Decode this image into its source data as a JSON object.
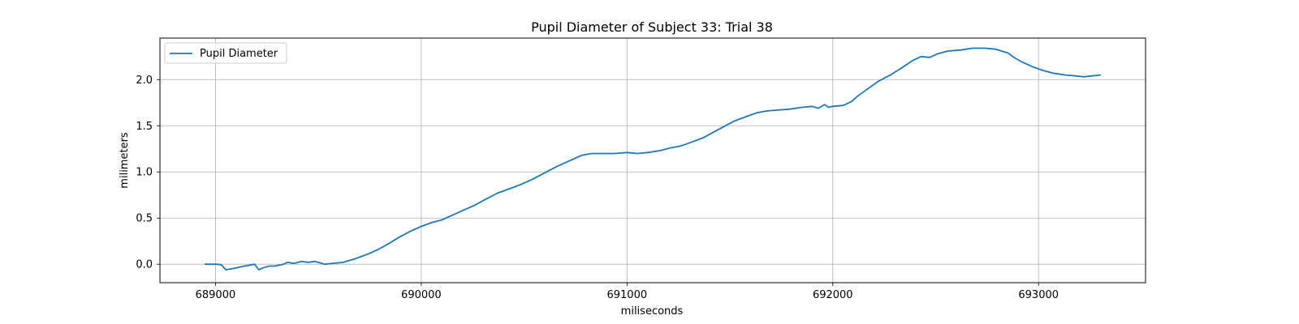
{
  "chart_data": {
    "type": "line",
    "title": "Pupil Diameter of Subject 33: Trial 38",
    "xlabel": "miliseconds",
    "ylabel": "milimeters",
    "xlim": [
      688730,
      693520
    ],
    "ylim": [
      -0.2,
      2.45
    ],
    "xticks": [
      689000,
      690000,
      691000,
      692000,
      693000
    ],
    "yticks": [
      0.0,
      0.5,
      1.0,
      1.5,
      2.0
    ],
    "xtick_labels": [
      "689000",
      "690000",
      "691000",
      "692000",
      "693000"
    ],
    "ytick_labels": [
      "0.0",
      "0.5",
      "1.0",
      "1.5",
      "2.0"
    ],
    "grid": true,
    "legend_position": "top-left",
    "colors": {
      "series": "#1f77b4",
      "grid": "#b0b0b0"
    },
    "series": [
      {
        "name": "Pupil Diameter",
        "x": [
          688950,
          689010,
          689030,
          689050,
          689080,
          689140,
          689170,
          689190,
          689210,
          689230,
          689260,
          689290,
          689330,
          689350,
          689380,
          689420,
          689450,
          689480,
          689500,
          689530,
          689570,
          689620,
          689680,
          689740,
          689790,
          689840,
          689890,
          689950,
          690000,
          690050,
          690100,
          690150,
          690200,
          690260,
          690310,
          690370,
          690420,
          690480,
          690540,
          690600,
          690660,
          690720,
          690780,
          690830,
          690880,
          690940,
          691000,
          691050,
          691100,
          691160,
          691210,
          691260,
          691310,
          691370,
          691420,
          691470,
          691520,
          691580,
          691630,
          691680,
          691730,
          691790,
          691850,
          691900,
          691930,
          691960,
          691980,
          692000,
          692050,
          692090,
          692120,
          692170,
          692220,
          692280,
          692330,
          692390,
          692430,
          692470,
          692510,
          692560,
          692620,
          692680,
          692740,
          692790,
          692850,
          692880,
          692920,
          692970,
          693020,
          693070,
          693130,
          693180,
          693220,
          693260,
          693300
        ],
        "y": [
          0.0,
          0.0,
          -0.01,
          -0.06,
          -0.05,
          -0.02,
          -0.01,
          0.0,
          -0.06,
          -0.04,
          -0.02,
          -0.02,
          0.0,
          0.02,
          0.01,
          0.03,
          0.02,
          0.03,
          0.02,
          0.0,
          0.01,
          0.02,
          0.06,
          0.11,
          0.16,
          0.22,
          0.29,
          0.36,
          0.41,
          0.45,
          0.48,
          0.53,
          0.58,
          0.64,
          0.7,
          0.77,
          0.81,
          0.86,
          0.92,
          0.99,
          1.06,
          1.12,
          1.18,
          1.2,
          1.2,
          1.2,
          1.21,
          1.2,
          1.21,
          1.23,
          1.26,
          1.28,
          1.32,
          1.37,
          1.43,
          1.49,
          1.55,
          1.6,
          1.64,
          1.66,
          1.67,
          1.68,
          1.7,
          1.71,
          1.69,
          1.73,
          1.7,
          1.71,
          1.72,
          1.76,
          1.82,
          1.9,
          1.98,
          2.05,
          2.12,
          2.21,
          2.25,
          2.24,
          2.28,
          2.31,
          2.32,
          2.34,
          2.34,
          2.33,
          2.29,
          2.24,
          2.19,
          2.14,
          2.1,
          2.07,
          2.05,
          2.04,
          2.03,
          2.04,
          2.05
        ]
      }
    ]
  }
}
